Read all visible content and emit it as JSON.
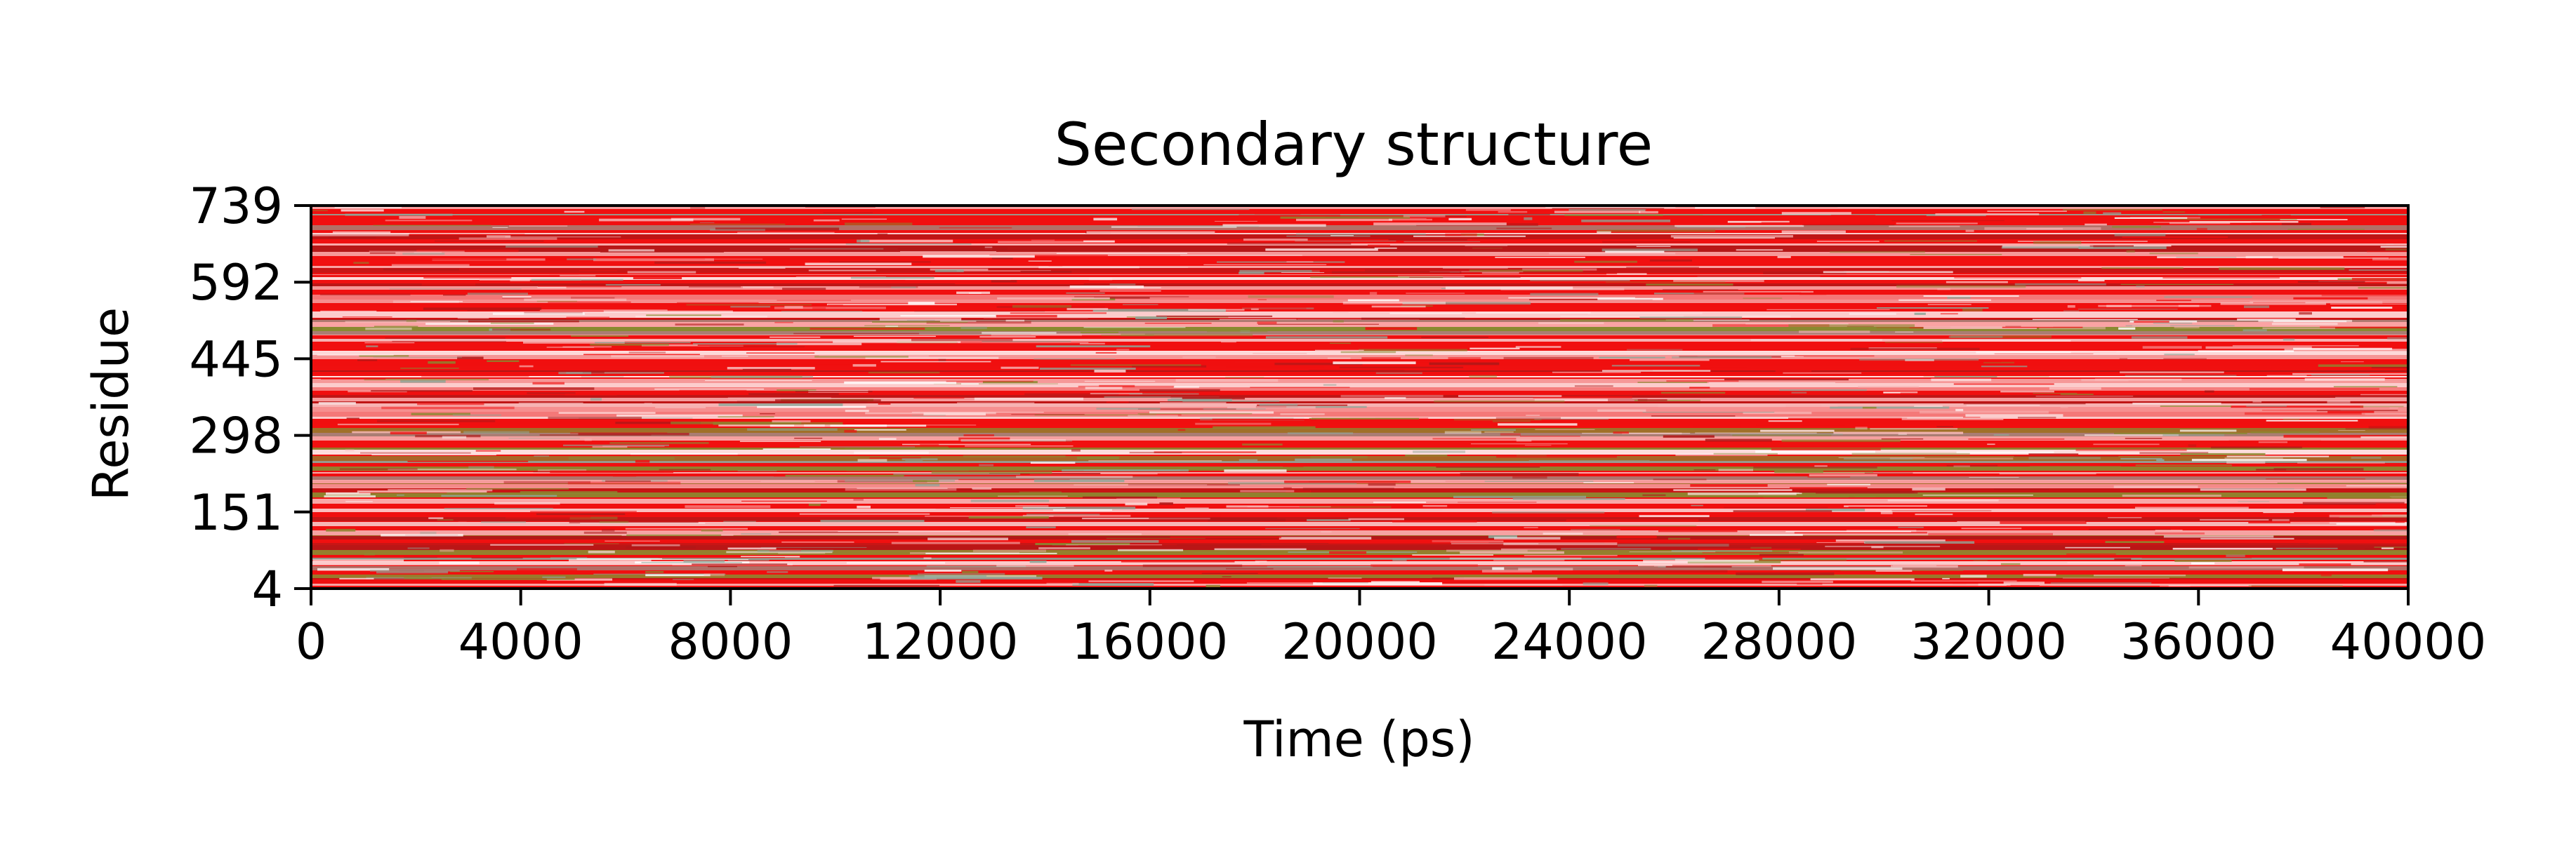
{
  "chart_data": {
    "type": "heatmap",
    "title": "Secondary structure",
    "xlabel": "Time (ps)",
    "ylabel": "Residue",
    "xlim": [
      0,
      40000
    ],
    "ylim": [
      4,
      739
    ],
    "x_ticks": [
      "0",
      "4000",
      "8000",
      "12000",
      "16000",
      "20000",
      "24000",
      "28000",
      "32000",
      "36000",
      "40000"
    ],
    "y_ticks": [
      "4",
      "151",
      "298",
      "445",
      "592",
      "739"
    ],
    "grid": false,
    "legend": "none",
    "colors": {
      "background": "#ffffff",
      "dominant": "#f01010",
      "light": "#f7b8b8",
      "pale": "#fde3e3",
      "dark": "#b01818",
      "olive": "#8a8a30",
      "gray_green": "#8fa79a",
      "white": "#ffffff"
    }
  }
}
